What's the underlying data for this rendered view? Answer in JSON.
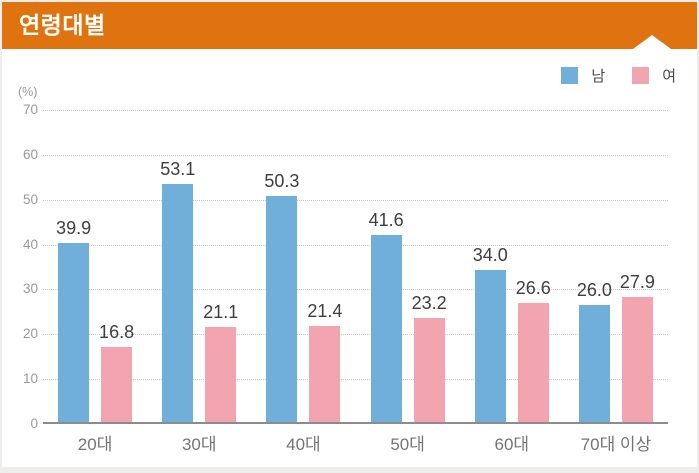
{
  "header": {
    "title": "연령대별"
  },
  "chart_data": {
    "type": "bar",
    "title": "연령대별",
    "xlabel": "",
    "ylabel": "(%)",
    "categories": [
      "20대",
      "30대",
      "40대",
      "50대",
      "60대",
      "70대 이상"
    ],
    "series": [
      {
        "name": "남",
        "color": "#6FAFD9",
        "values": [
          39.9,
          53.1,
          50.3,
          41.6,
          34.0,
          26.0
        ]
      },
      {
        "name": "여",
        "color": "#F3A5AF",
        "values": [
          16.8,
          21.1,
          21.4,
          23.2,
          26.6,
          27.9
        ]
      }
    ],
    "ylim": [
      0,
      70
    ],
    "ytick_step": 10,
    "value_label_decimals": 1,
    "grid": true,
    "legend_position": "top-right"
  },
  "colors": {
    "header_bg": "#DF7310",
    "header_text": "#FFFFFF",
    "card_bg": "#FFFFFF",
    "frame_bg": "#EFEDEA",
    "gridline": "#CCCCCC",
    "baseline": "#8C8C8C",
    "value_label": "#3E3E3E",
    "axis_tick": "#999999",
    "category_label": "#757575",
    "legend_text": "#4A4A4A"
  }
}
